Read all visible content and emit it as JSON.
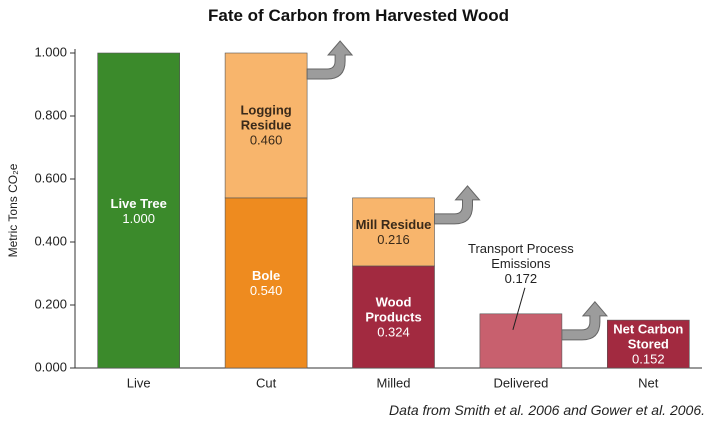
{
  "chart_data": {
    "type": "stacked_bar",
    "title": "Fate of Carbon from Harvested Wood",
    "y_label": "Metric Tons CO₂e",
    "source": "Data from Smith et al. 2006 and Gower et al. 2006.",
    "categories": [
      "Live",
      "Cut",
      "Milled",
      "Delivered",
      "Net"
    ],
    "bars": [
      {
        "arrow": false,
        "segments": [
          {
            "name": "Live Tree",
            "value": 1.0,
            "value_label": "1.000",
            "color": "#3b8a2b",
            "label_color": "#ffffff"
          }
        ]
      },
      {
        "arrow": true,
        "segments": [
          {
            "name": "Bole",
            "value": 0.54,
            "value_label": "0.540",
            "color": "#ee8b1f",
            "label_color": "#ffffff"
          },
          {
            "name": "Logging Residue",
            "value": 0.46,
            "value_label": "0.460",
            "color": "#f8b56c",
            "label_color": "#3a2a1a"
          }
        ]
      },
      {
        "arrow": true,
        "segments": [
          {
            "name": "Wood Products",
            "value": 0.324,
            "value_label": "0.324",
            "color": "#a22a40",
            "label_color": "#ffffff"
          },
          {
            "name": "Mill Residue",
            "value": 0.216,
            "value_label": "0.216",
            "color": "#f8b56c",
            "label_color": "#3a2a1a"
          }
        ]
      },
      {
        "arrow": true,
        "segments": [
          {
            "name": "Transport Process Emissions",
            "value": 0.172,
            "value_label": "0.172",
            "color": "#c8606e",
            "label_color": "#222222",
            "label_position": "above"
          }
        ]
      },
      {
        "arrow": false,
        "segments": [
          {
            "name": "Net Carbon Stored",
            "value": 0.152,
            "value_label": "0.152",
            "color": "#a22a40",
            "label_color": "#ffffff"
          }
        ]
      }
    ],
    "ylim": [
      0,
      1
    ],
    "yticks": [
      {
        "value": 0,
        "label": "0.000"
      },
      {
        "value": 0.2,
        "label": "0.200"
      },
      {
        "value": 0.4,
        "label": "0.400"
      },
      {
        "value": 0.6,
        "label": "0.600"
      },
      {
        "value": 0.8,
        "label": "0.800"
      },
      {
        "value": 1,
        "label": "1.000"
      }
    ],
    "grid": false
  }
}
